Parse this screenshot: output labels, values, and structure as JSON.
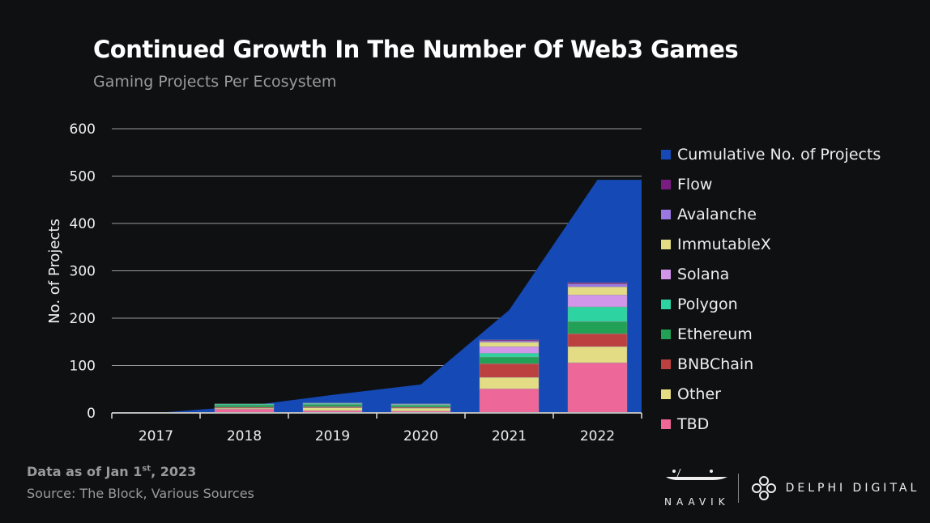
{
  "chart_data": {
    "type": "bar",
    "title": "Continued Growth In The Number Of Web3 Games",
    "subtitle": "Gaming Projects Per Ecosystem",
    "ylabel": "No. of Projects",
    "xlabel": "",
    "ylim": [
      0,
      600
    ],
    "yticks": [
      "0",
      "100",
      "200",
      "300",
      "400",
      "500",
      "600"
    ],
    "grid": true,
    "legend_position": "right",
    "categories": [
      "2017",
      "2018",
      "2019",
      "2020",
      "2021",
      "2022"
    ],
    "area": {
      "name": "Cumulative No. of Projects",
      "color": "#1549b5",
      "values": [
        0,
        14,
        38,
        60,
        217,
        492
      ]
    },
    "series": [
      {
        "name": "TBD",
        "color": "#ee6799",
        "values": [
          0,
          8,
          5,
          4,
          51,
          106
        ]
      },
      {
        "name": "Other",
        "color": "#e3dc85",
        "values": [
          0,
          2,
          6,
          6,
          24,
          34
        ]
      },
      {
        "name": "BNBChain",
        "color": "#bd4040",
        "values": [
          0,
          2,
          2,
          2,
          29,
          27
        ]
      },
      {
        "name": "Ethereum",
        "color": "#22a055",
        "values": [
          0,
          5,
          5,
          4,
          14,
          26
        ]
      },
      {
        "name": "Polygon",
        "color": "#2dd3a0",
        "values": [
          0,
          2,
          2,
          2,
          8,
          31
        ]
      },
      {
        "name": "Solana",
        "color": "#d195ea",
        "values": [
          0,
          0,
          1,
          1,
          14,
          25
        ]
      },
      {
        "name": "ImmutableX",
        "color": "#e3dc85",
        "values": [
          0,
          0,
          0,
          0,
          9,
          17
        ]
      },
      {
        "name": "Avalanche",
        "color": "#9a78e0",
        "values": [
          0,
          0,
          0,
          0,
          3,
          6
        ]
      },
      {
        "name": "Flow",
        "color": "#7a1d82",
        "values": [
          0,
          0,
          0,
          0,
          2,
          3
        ]
      }
    ]
  },
  "footer": {
    "note": "Data as of Jan 1",
    "note_sup": "st",
    "note_tail": ", 2023",
    "source": "Source: The Block, Various Sources"
  },
  "logos": {
    "naavik": "NAAVIK",
    "delphi": "DELPHI DIGITAL"
  }
}
